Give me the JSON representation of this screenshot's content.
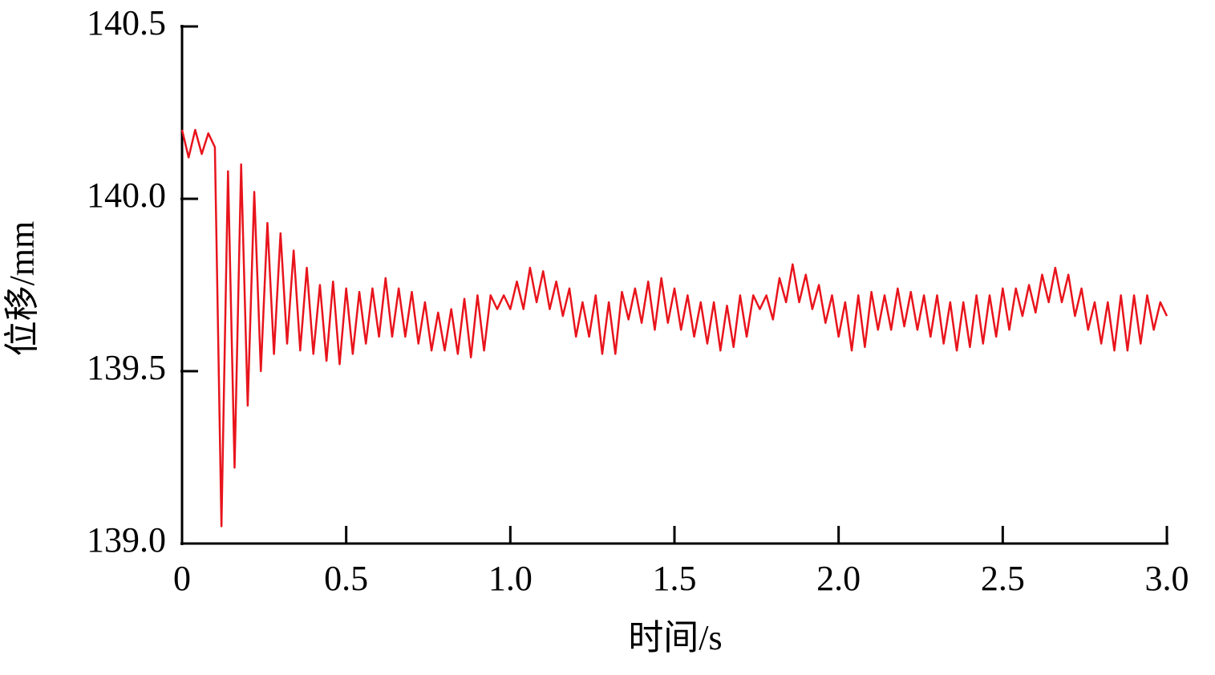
{
  "chart_data": {
    "type": "line",
    "x_label": "时间/s",
    "y_label": "位移/mm",
    "xlim": [
      0,
      3
    ],
    "ylim": [
      139,
      140.5
    ],
    "xticks": [
      0,
      0.5,
      {
        "value": 1,
        "label": "1.0"
      },
      1.5,
      {
        "value": 2,
        "label": "2.0"
      },
      2.5,
      {
        "value": 3,
        "label": "3.0"
      }
    ],
    "yticks": [
      {
        "value": 139,
        "label": "139.0"
      },
      139.5,
      {
        "value": 140,
        "label": "140.0"
      },
      140.5
    ],
    "color": "#e8141c",
    "x": [
      0,
      0.02,
      0.04,
      0.06,
      0.08,
      0.1,
      0.12,
      0.14,
      0.16,
      0.18,
      0.2,
      0.22,
      0.24,
      0.26,
      0.28,
      0.3,
      0.32,
      0.34,
      0.36,
      0.38,
      0.4,
      0.42,
      0.44,
      0.46,
      0.48,
      0.5,
      0.52,
      0.54,
      0.56,
      0.58,
      0.6,
      0.62,
      0.64,
      0.66,
      0.68,
      0.7,
      0.72,
      0.74,
      0.76,
      0.78,
      0.8,
      0.82,
      0.84,
      0.86,
      0.88,
      0.9,
      0.92,
      0.94,
      0.96,
      0.98,
      1,
      1.02,
      1.04,
      1.06,
      1.08,
      1.1,
      1.12,
      1.14,
      1.16,
      1.18,
      1.2,
      1.22,
      1.24,
      1.26,
      1.28,
      1.3,
      1.32,
      1.34,
      1.36,
      1.38,
      1.4,
      1.42,
      1.44,
      1.46,
      1.48,
      1.5,
      1.52,
      1.54,
      1.56,
      1.58,
      1.6,
      1.62,
      1.64,
      1.66,
      1.68,
      1.7,
      1.72,
      1.74,
      1.76,
      1.78,
      1.8,
      1.82,
      1.84,
      1.86,
      1.88,
      1.9,
      1.92,
      1.94,
      1.96,
      1.98,
      2,
      2.02,
      2.04,
      2.06,
      2.08,
      2.1,
      2.12,
      2.14,
      2.16,
      2.18,
      2.2,
      2.22,
      2.24,
      2.26,
      2.28,
      2.3,
      2.32,
      2.34,
      2.36,
      2.38,
      2.4,
      2.42,
      2.44,
      2.46,
      2.48,
      2.5,
      2.52,
      2.54,
      2.56,
      2.58,
      2.6,
      2.62,
      2.64,
      2.66,
      2.68,
      2.7,
      2.72,
      2.74,
      2.76,
      2.78,
      2.8,
      2.82,
      2.84,
      2.86,
      2.88,
      2.9,
      2.92,
      2.94,
      2.96,
      2.98,
      3
    ],
    "values": [
      140.2,
      140.12,
      140.2,
      140.13,
      140.19,
      140.15,
      139.05,
      140.08,
      139.22,
      140.1,
      139.4,
      140.02,
      139.5,
      139.93,
      139.55,
      139.9,
      139.58,
      139.85,
      139.56,
      139.8,
      139.55,
      139.75,
      139.53,
      139.76,
      139.52,
      139.74,
      139.55,
      139.73,
      139.58,
      139.74,
      139.6,
      139.77,
      139.6,
      139.74,
      139.6,
      139.73,
      139.58,
      139.7,
      139.56,
      139.67,
      139.56,
      139.68,
      139.55,
      139.71,
      139.54,
      139.72,
      139.56,
      139.72,
      139.68,
      139.72,
      139.68,
      139.76,
      139.68,
      139.8,
      139.7,
      139.79,
      139.68,
      139.76,
      139.66,
      139.74,
      139.6,
      139.7,
      139.6,
      139.72,
      139.55,
      139.7,
      139.55,
      139.73,
      139.65,
      139.74,
      139.64,
      139.76,
      139.62,
      139.77,
      139.64,
      139.74,
      139.62,
      139.72,
      139.6,
      139.7,
      139.58,
      139.7,
      139.56,
      139.69,
      139.57,
      139.72,
      139.6,
      139.72,
      139.68,
      139.72,
      139.65,
      139.77,
      139.7,
      139.81,
      139.7,
      139.78,
      139.68,
      139.75,
      139.64,
      139.72,
      139.6,
      139.7,
      139.56,
      139.72,
      139.57,
      139.73,
      139.62,
      139.72,
      139.62,
      139.74,
      139.63,
      139.73,
      139.62,
      139.72,
      139.6,
      139.72,
      139.58,
      139.7,
      139.56,
      139.7,
      139.57,
      139.72,
      139.58,
      139.72,
      139.6,
      139.74,
      139.62,
      139.74,
      139.66,
      139.75,
      139.67,
      139.78,
      139.7,
      139.8,
      139.7,
      139.78,
      139.66,
      139.74,
      139.62,
      139.7,
      139.58,
      139.7,
      139.56,
      139.72,
      139.56,
      139.72,
      139.58,
      139.72,
      139.62,
      139.7,
      139.66
    ]
  }
}
